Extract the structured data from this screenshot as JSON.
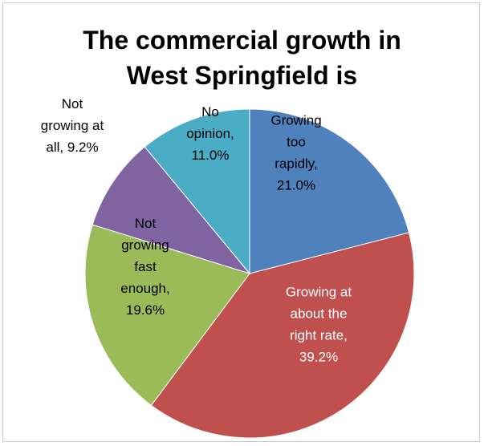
{
  "chart_data": {
    "type": "pie",
    "title_lines": [
      "The commercial growth in",
      "West Springfield is"
    ],
    "slices": [
      {
        "label_lines": [
          "Growing",
          "too",
          "rapidly,",
          "21.0%"
        ],
        "value": 21.0,
        "color": "#4F81BD",
        "text_color": "#000000"
      },
      {
        "label_lines": [
          "Growing at",
          "about the",
          "right rate,",
          "39.2%"
        ],
        "value": 39.2,
        "color": "#C0504D",
        "text_color": "#ffffff"
      },
      {
        "label_lines": [
          "Not",
          "growing",
          "fast",
          "enough,",
          "19.6%"
        ],
        "value": 19.6,
        "color": "#9BBB59",
        "text_color": "#000000"
      },
      {
        "label_lines": [
          "Not",
          "growing at",
          "all, 9.2%"
        ],
        "value": 9.2,
        "color": "#8064A2",
        "text_color": "#000000"
      },
      {
        "label_lines": [
          "No",
          "opinion,",
          "11.0%"
        ],
        "value": 11.0,
        "color": "#4BACC6",
        "text_color": "#000000"
      }
    ]
  }
}
